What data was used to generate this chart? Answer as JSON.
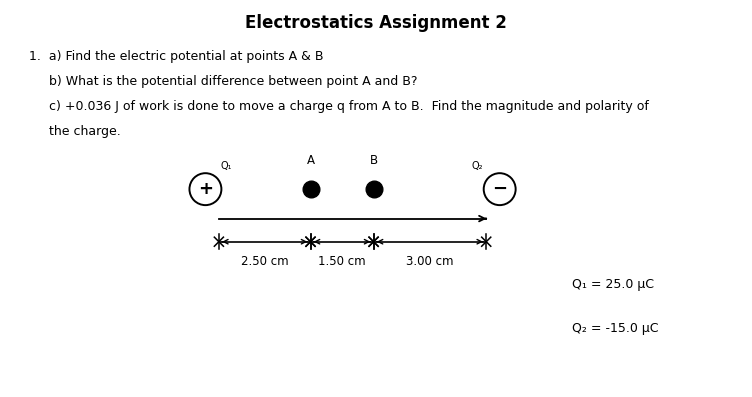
{
  "title": "Electrostatics Assignment 2",
  "title_fontsize": 12,
  "q1_text": "1.  a) Find the electric potential at points A & B",
  "q2_text": "     b) What is the potential difference between point A and B?",
  "q3_text": "     c) +0.036 J of work is done to move a charge q from A to B.  Find the magnitude and polarity of",
  "q4_text": "     the charge.",
  "charge_info_1": "Q₁ = 25.0 μC",
  "charge_info_2": "Q₂ = -15.0 μC",
  "bg_color": "#ffffff",
  "text_color": "#000000",
  "text_fontsize": 9,
  "diagram": {
    "q1_label": "Q₁",
    "q1_sign": "+",
    "A_label": "A",
    "B_label": "B",
    "q2_label": "Q₂",
    "q2_sign": "−",
    "dist1": "2.50 cm",
    "dist2": "1.50 cm",
    "dist3": "3.00 cm"
  }
}
